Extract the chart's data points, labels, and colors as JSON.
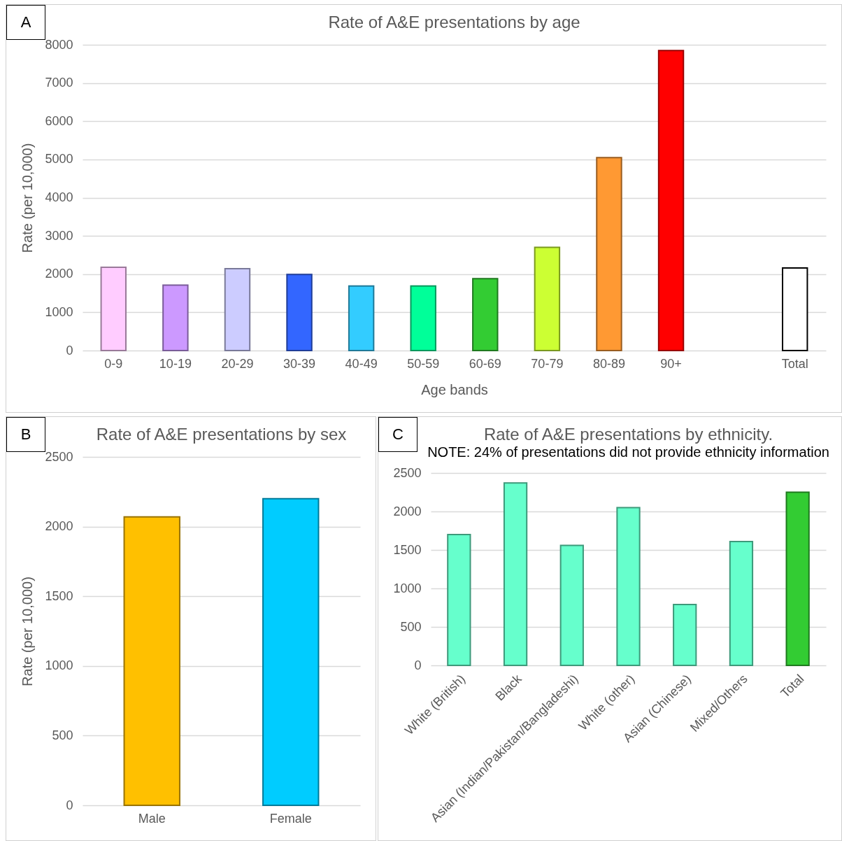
{
  "chart_data": [
    {
      "type": "bar",
      "title": "Rate of A&E presentations by age",
      "xlabel": "Age bands",
      "ylabel": "Rate (per 10,000)",
      "annotations": [
        "A"
      ],
      "categories": [
        "0-9",
        "10-19",
        "20-29",
        "30-39",
        "40-49",
        "50-59",
        "60-69",
        "70-79",
        "80-89",
        "90+",
        null,
        "Total"
      ],
      "values": [
        2180,
        1710,
        2140,
        1990,
        1690,
        1690,
        1880,
        2700,
        5050,
        7850,
        null,
        2160
      ],
      "colors": [
        "#ffccff",
        "#cc99ff",
        "#ccccff",
        "#3366ff",
        "#33ccff",
        "#00ff99",
        "#33cc33",
        "#ccff33",
        "#ff9933",
        "#ff0000",
        "#ffffff",
        "#ffffff"
      ],
      "ylim": [
        0,
        8000
      ],
      "yticks": [
        0,
        1000,
        2000,
        3000,
        4000,
        5000,
        6000,
        7000,
        8000
      ],
      "grid": "y",
      "legend": false
    },
    {
      "type": "bar",
      "title": "Rate of A&E presentations by sex",
      "ylabel": "Rate (per 10,000)",
      "annotations": [
        "B"
      ],
      "categories": [
        "Male",
        "Female"
      ],
      "values": [
        2070,
        2200
      ],
      "colors": [
        "#ffc000",
        "#00ccff"
      ],
      "ylim": [
        0,
        2500
      ],
      "yticks": [
        0,
        500,
        1000,
        1500,
        2000,
        2500
      ],
      "grid": "y",
      "legend": false
    },
    {
      "type": "bar",
      "title": "Rate of A&E presentations by ethnicity.",
      "subtitle": "NOTE: 24% of presentations did not provide ethnicity information",
      "annotations": [
        "C"
      ],
      "categories": [
        "White (British)",
        "Black",
        "Asian (Indian/Pakistan/Bangladeshi)",
        "White (other)",
        "Asian (Chinese)",
        "Mixed/Others",
        "Total"
      ],
      "values": [
        1700,
        2370,
        1560,
        2050,
        790,
        1610,
        2250
      ],
      "colors": [
        "#66ffcc",
        "#66ffcc",
        "#66ffcc",
        "#66ffcc",
        "#66ffcc",
        "#66ffcc",
        "#33cc33"
      ],
      "ylim": [
        0,
        2500
      ],
      "yticks": [
        0,
        500,
        1000,
        1500,
        2000,
        2500
      ],
      "grid": "y",
      "legend": false
    }
  ]
}
